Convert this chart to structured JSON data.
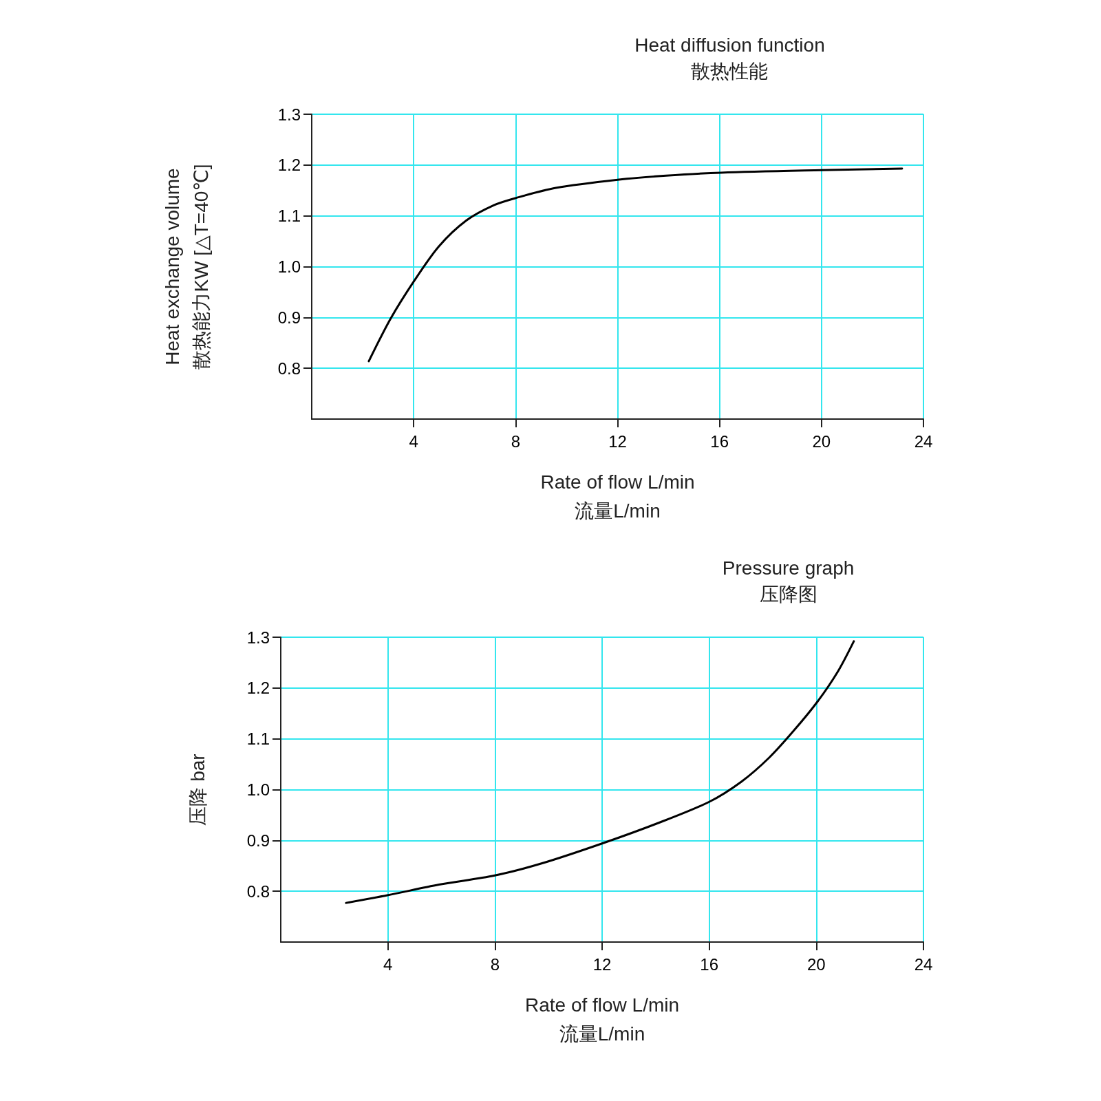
{
  "chart_data": [
    {
      "type": "line",
      "title": "Heat diffusion function",
      "subtitle": "散热性能",
      "xlabel": "Rate of flow L/min\n流量L/min",
      "ylabel": "Heat exchange volume\n散热能力KW [△T=40℃]",
      "xlim": [
        0,
        24
      ],
      "xticks": [
        4,
        8,
        12,
        16,
        20,
        24
      ],
      "ylim": [
        0.7,
        1.3
      ],
      "yticks": [
        0.8,
        0.9,
        {
          "value": 1,
          "label": "1.0"
        },
        1.1,
        1.2,
        1.3
      ],
      "grid": true,
      "series": [
        {
          "color": "#000000",
          "x": [
            2.24,
            3.1,
            4.02,
            4.99,
            6.07,
            7.15,
            8.0,
            9.58,
            12.0,
            13.9,
            16.06,
            20.0,
            23.16
          ],
          "values": [
            0.814,
            0.898,
            0.972,
            1.04,
            1.091,
            1.121,
            1.135,
            1.155,
            1.171,
            1.179,
            1.185,
            1.19,
            1.193
          ]
        }
      ]
    },
    {
      "type": "line",
      "title": "Pressure graph",
      "subtitle": "压降图",
      "xlabel": "Rate of flow L/min\n流量L/min",
      "ylabel": "压降 bar",
      "xlim": [
        0,
        24
      ],
      "xticks": [
        4,
        8,
        12,
        16,
        20,
        24
      ],
      "ylim": [
        0.7,
        1.3
      ],
      "yticks": [
        0.8,
        0.9,
        {
          "value": 1,
          "label": "1.0"
        },
        1.1,
        1.2,
        1.3
      ],
      "grid": true,
      "series": [
        {
          "color": "#000000",
          "x": [
            2.44,
            3.98,
            5.91,
            7.99,
            9.76,
            12.0,
            14.13,
            16.0,
            17.21,
            18.24,
            19.14,
            20.04,
            20.81,
            21.4
          ],
          "values": [
            0.777,
            0.792,
            0.813,
            0.831,
            0.855,
            0.894,
            0.935,
            0.976,
            1.016,
            1.063,
            1.115,
            1.173,
            1.233,
            1.292
          ]
        }
      ]
    }
  ]
}
